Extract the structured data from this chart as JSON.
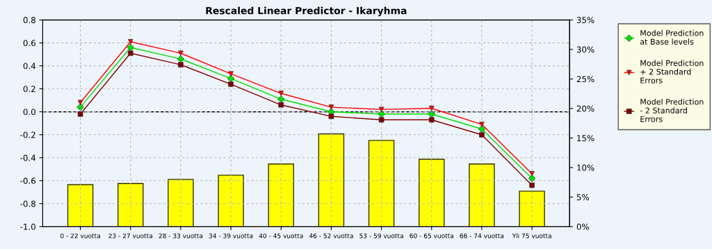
{
  "chart_data": {
    "type": "line",
    "title": "Rescaled Linear Predictor - Ikaryhma",
    "categories": [
      "0 - 22 vuotta",
      "23 - 27 vuotta",
      "28 - 33 vuotta",
      "34 - 39 vuotta",
      "40 - 45 vuotta",
      "46 - 52 vuotta",
      "53 - 59 vuotta",
      "60 - 65 vuotta",
      "66 - 74 vuotta",
      "Yli 75 vuotta"
    ],
    "series": [
      {
        "type": "bar",
        "axis": "y2",
        "color": "#ffff00",
        "values": [
          7.1,
          7.3,
          8.0,
          8.7,
          10.6,
          15.7,
          14.6,
          11.4,
          10.6,
          6.0
        ]
      },
      {
        "name": "Model Prediction at Base levels",
        "color": "#00e000",
        "marker": "diamond",
        "values": [
          0.04,
          0.56,
          0.46,
          0.29,
          0.11,
          0.0,
          -0.02,
          -0.02,
          -0.15,
          -0.58
        ]
      },
      {
        "name": "Model Prediction + 2 Standard Errors",
        "color": "#ff0000",
        "marker": "triangle",
        "values": [
          0.08,
          0.61,
          0.51,
          0.33,
          0.16,
          0.04,
          0.02,
          0.03,
          -0.11,
          -0.54
        ]
      },
      {
        "name": "Model Prediction - 2 Standard Errors",
        "color": "#800000",
        "marker": "square",
        "values": [
          -0.02,
          0.51,
          0.41,
          0.24,
          0.06,
          -0.04,
          -0.07,
          -0.07,
          -0.2,
          -0.64
        ]
      }
    ],
    "ylim": [
      -1.0,
      0.8
    ],
    "yticks": [
      {
        "value": -1.0,
        "label": "-1.0"
      },
      {
        "value": -0.8,
        "label": "-0.8"
      },
      {
        "value": -0.6,
        "label": "-0.6"
      },
      {
        "value": -0.4,
        "label": "-0.4"
      },
      {
        "value": -0.2,
        "label": "-0.2"
      },
      {
        "value": 0.0,
        "label": "0.0"
      },
      {
        "value": 0.2,
        "label": "0.2"
      },
      {
        "value": 0.4,
        "label": "0.4"
      },
      {
        "value": 0.6,
        "label": "0.6"
      },
      {
        "value": 0.8,
        "label": "0.8"
      }
    ],
    "y2lim": [
      0,
      35
    ],
    "y2ticks": [
      {
        "value": 0,
        "label": "0%"
      },
      {
        "value": 5,
        "label": "5%"
      },
      {
        "value": 10,
        "label": "10%"
      },
      {
        "value": 15,
        "label": "15%"
      },
      {
        "value": 20,
        "label": "20%"
      },
      {
        "value": 25,
        "label": "25%"
      },
      {
        "value": 30,
        "label": "30%"
      },
      {
        "value": 35,
        "label": "35%"
      }
    ],
    "ref_lines": [
      {
        "axis": "y",
        "value": 0.0,
        "color": "#000000",
        "line_style": "dashed"
      }
    ],
    "grid": true,
    "legend": "right"
  }
}
